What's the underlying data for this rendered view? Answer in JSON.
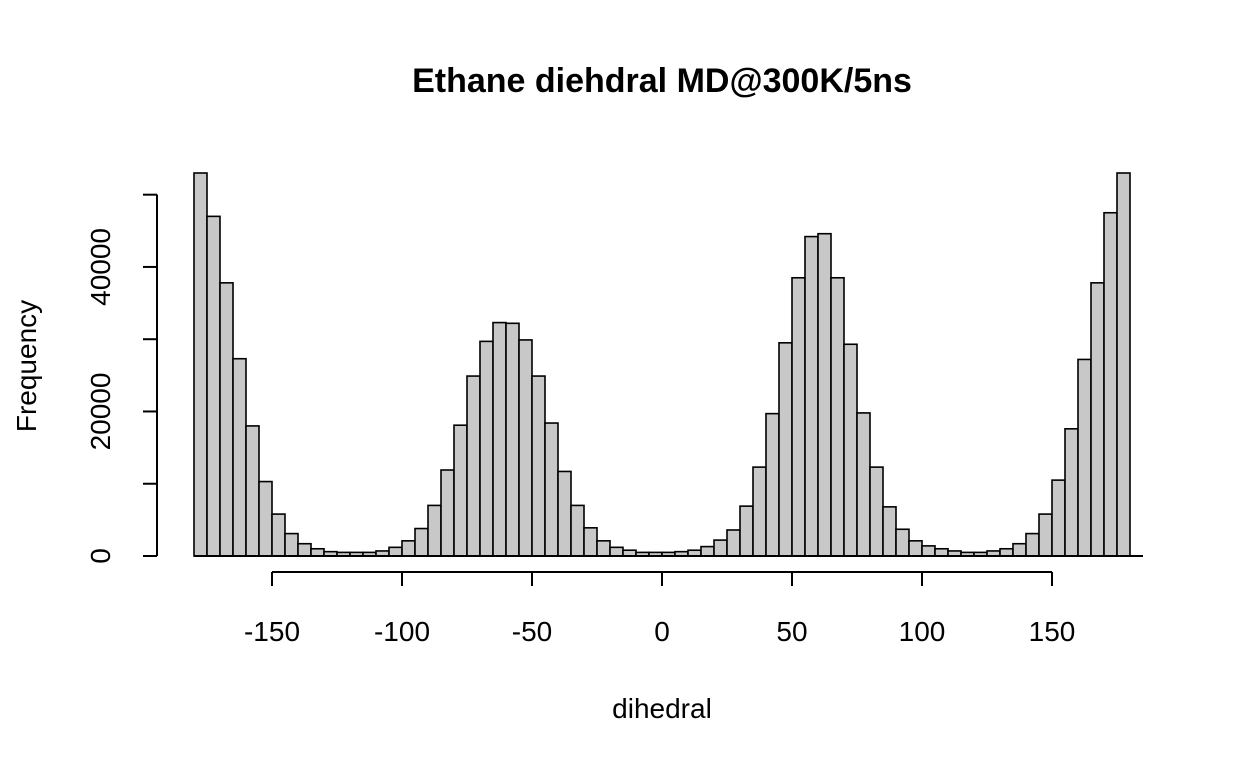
{
  "chart_data": {
    "type": "bar",
    "title": "Ethane diehdral MD@300K/5ns",
    "xlabel": "dihedral",
    "ylabel": "Frequency",
    "bin_width": 5,
    "x_range": [
      -180,
      180
    ],
    "xlim": [
      -180,
      180
    ],
    "ylim": [
      0,
      53000
    ],
    "x_ticks": [
      -150,
      -100,
      -50,
      0,
      50,
      100,
      150
    ],
    "x_tick_labels": [
      "-150",
      "-100",
      "-50",
      "0",
      "50",
      "100",
      "150"
    ],
    "y_ticks": [
      0,
      10000,
      20000,
      30000,
      40000,
      50000
    ],
    "y_tick_labels": [
      "0",
      "",
      "20000",
      "",
      "40000",
      ""
    ],
    "grid": false,
    "bar_fill": "#c8c8c8",
    "bin_counts": [
      53000,
      47000,
      37800,
      27300,
      18000,
      10300,
      5800,
      3100,
      1700,
      1000,
      600,
      500,
      500,
      500,
      700,
      1200,
      2100,
      3800,
      7000,
      11900,
      18100,
      24900,
      29700,
      32300,
      32200,
      29900,
      24900,
      18400,
      11700,
      7000,
      3900,
      2100,
      1200,
      800,
      500,
      500,
      500,
      600,
      800,
      1300,
      2200,
      3600,
      6900,
      12300,
      19700,
      29500,
      38500,
      44200,
      44600,
      38500,
      29300,
      19800,
      12300,
      6800,
      3700,
      2100,
      1400,
      1000,
      700,
      500,
      500,
      700,
      1000,
      1700,
      3100,
      5800,
      10500,
      17600,
      27200,
      37800,
      47500,
      53000
    ]
  }
}
